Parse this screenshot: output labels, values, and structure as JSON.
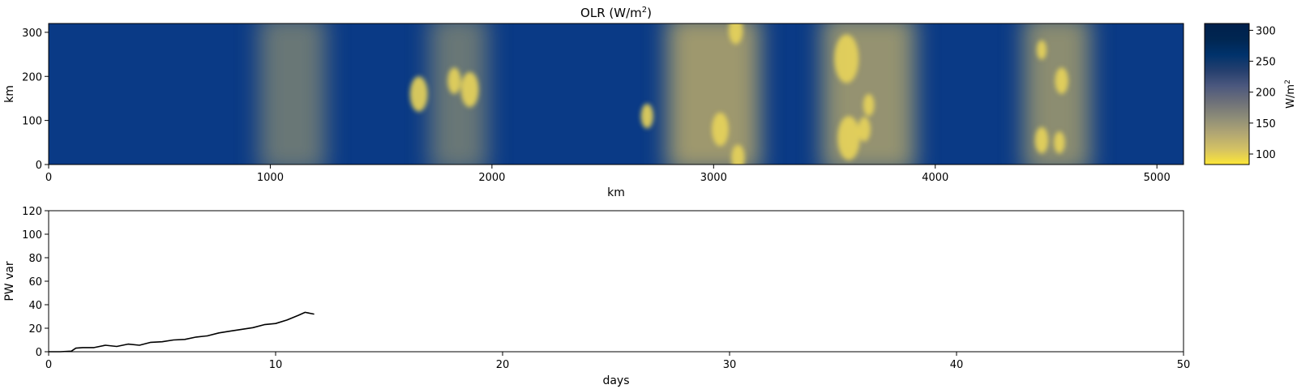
{
  "chart_data": [
    {
      "type": "heatmap",
      "title": "OLR (W/m",
      "title_sup": "2",
      "title_close": ")",
      "xlabel": "km",
      "ylabel": "km",
      "xlim": [
        0,
        5120
      ],
      "ylim": [
        0,
        320
      ],
      "xticks": [
        0,
        1000,
        2000,
        3000,
        4000,
        5000
      ],
      "yticks": [
        0,
        100,
        200,
        300
      ],
      "colormap": "cividis_r",
      "colorbar": {
        "label": "W/m",
        "label_sup": "2",
        "range": [
          83,
          311
        ],
        "ticks": [
          100,
          150,
          200,
          250,
          300
        ],
        "colors": [
          "#fde737",
          "#d3c164",
          "#b1a673",
          "#8d8c78",
          "#6d7079",
          "#4c587e",
          "#253f6e",
          "#00326b",
          "#002651",
          "#00204c"
        ]
      },
      "convective_bands_km": [
        {
          "x_center": 1100,
          "width": 300,
          "intensity": 0.55
        },
        {
          "x_center": 1850,
          "width": 260,
          "intensity": 0.55
        },
        {
          "x_center": 3000,
          "width": 420,
          "intensity": 0.85
        },
        {
          "x_center": 3700,
          "width": 420,
          "intensity": 0.8
        },
        {
          "x_center": 4550,
          "width": 300,
          "intensity": 0.75
        }
      ],
      "deep_clouds_km": [
        {
          "x": 1670,
          "y": 160,
          "r": 40
        },
        {
          "x": 1830,
          "y": 190,
          "r": 30
        },
        {
          "x": 1900,
          "y": 170,
          "r": 40
        },
        {
          "x": 3030,
          "y": 80,
          "r": 38
        },
        {
          "x": 3100,
          "y": 305,
          "r": 32
        },
        {
          "x": 3110,
          "y": 15,
          "r": 30
        },
        {
          "x": 3610,
          "y": 60,
          "r": 50
        },
        {
          "x": 3680,
          "y": 80,
          "r": 28
        },
        {
          "x": 3700,
          "y": 135,
          "r": 25
        },
        {
          "x": 3600,
          "y": 240,
          "r": 55
        },
        {
          "x": 4480,
          "y": 55,
          "r": 30
        },
        {
          "x": 4570,
          "y": 190,
          "r": 30
        },
        {
          "x": 4560,
          "y": 50,
          "r": 25
        },
        {
          "x": 4480,
          "y": 260,
          "r": 22
        },
        {
          "x": 2700,
          "y": 110,
          "r": 28
        }
      ]
    },
    {
      "type": "line",
      "xlabel": "days",
      "ylabel": "PW var",
      "xlim": [
        0,
        50
      ],
      "ylim": [
        0,
        120
      ],
      "xticks": [
        0,
        10,
        20,
        30,
        40,
        50
      ],
      "yticks": [
        0,
        20,
        40,
        60,
        80,
        100,
        120
      ],
      "series": [
        {
          "color": "#000000",
          "x": [
            0,
            0.5,
            1.0,
            1.2,
            1.5,
            2.0,
            2.5,
            3.0,
            3.5,
            4.0,
            4.5,
            5.0,
            5.5,
            6.0,
            6.5,
            7.0,
            7.5,
            8.0,
            8.5,
            9.0,
            9.5,
            10.0,
            10.5,
            11.0,
            11.3,
            11.7
          ],
          "y": [
            0,
            0,
            0.5,
            3,
            3.5,
            3.5,
            5.5,
            4.5,
            6.5,
            5.5,
            8,
            8.5,
            10,
            10.5,
            12.5,
            13.5,
            16,
            17.5,
            19,
            20.5,
            23,
            24,
            27,
            31,
            33.5,
            32
          ]
        }
      ]
    }
  ]
}
